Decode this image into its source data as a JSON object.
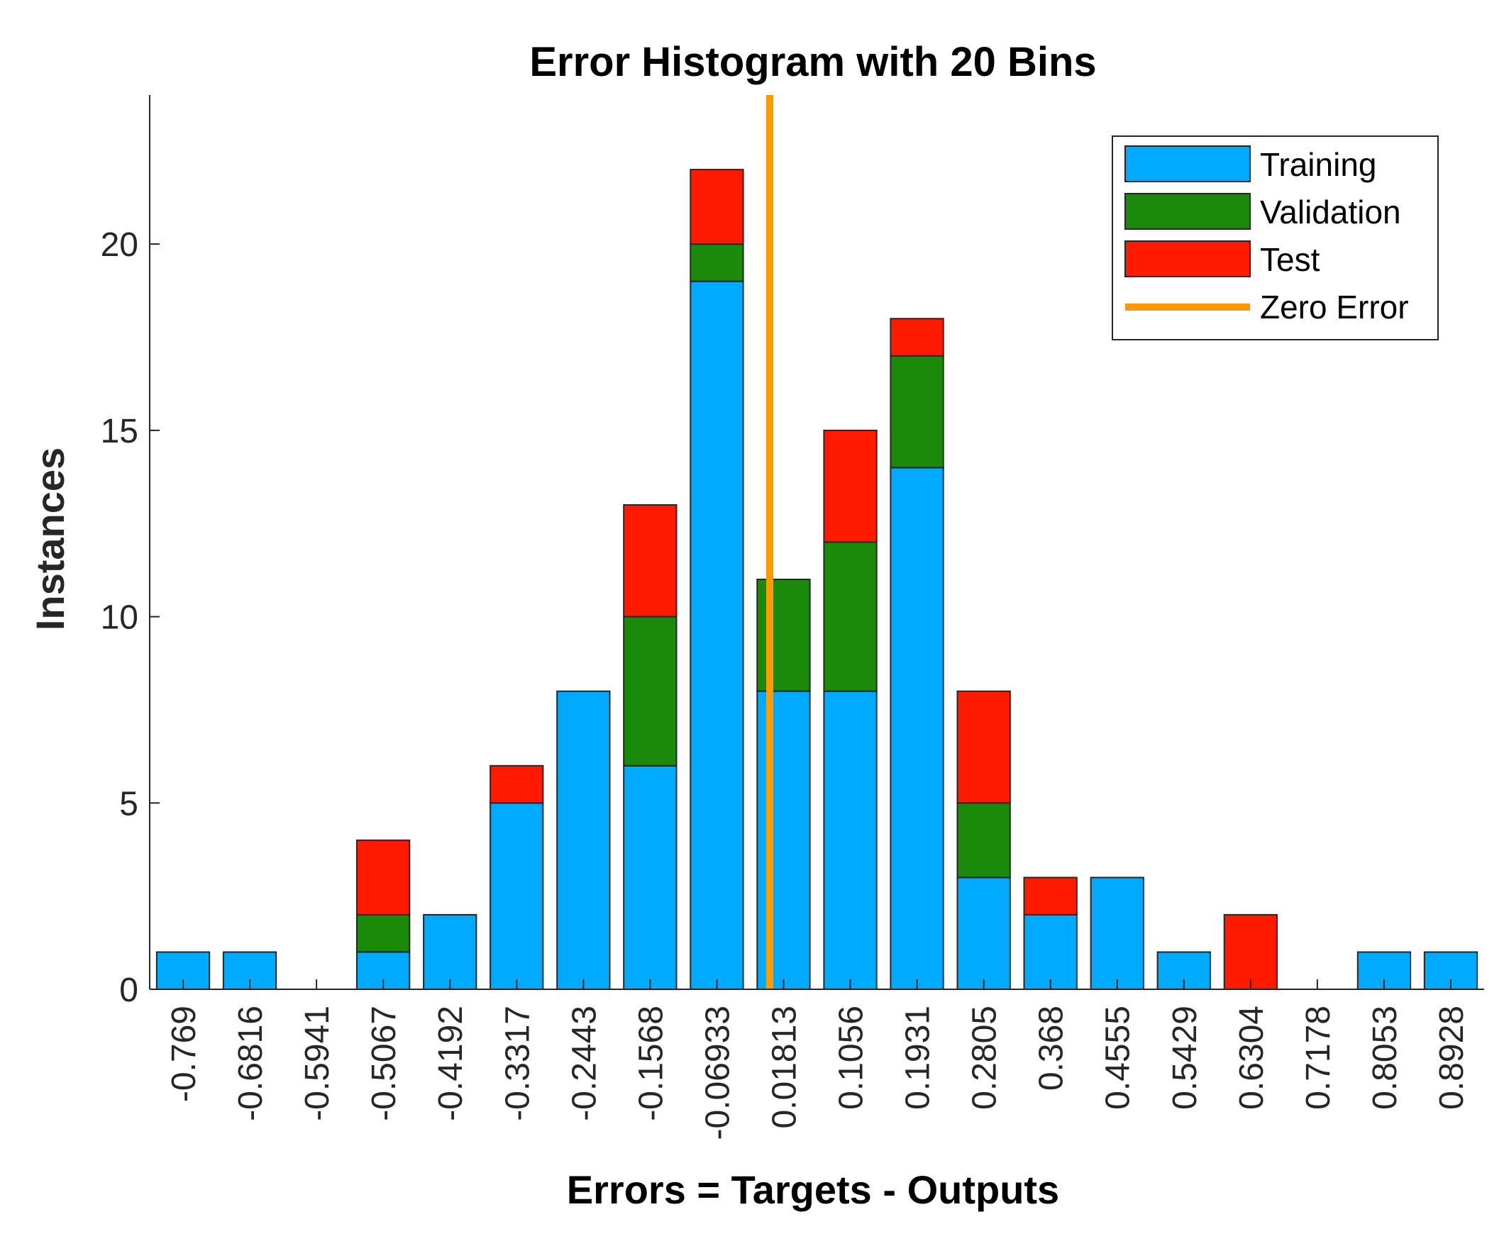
{
  "chart_data": {
    "type": "bar",
    "stacked": true,
    "title": "Error Histogram with 20 Bins",
    "xlabel": "Errors = Targets - Outputs",
    "ylabel": "Instances",
    "ylim": [
      0,
      24
    ],
    "yticks": [
      "0",
      "5",
      "10",
      "15",
      "20"
    ],
    "categories": [
      "-0.769",
      "-0.6816",
      "-0.5941",
      "-0.5067",
      "-0.4192",
      "-0.3317",
      "-0.2443",
      "-0.1568",
      "-0.06933",
      "0.01813",
      "0.1056",
      "0.1931",
      "0.2805",
      "0.368",
      "0.4555",
      "0.5429",
      "0.6304",
      "0.7178",
      "0.8053",
      "0.8928"
    ],
    "series": [
      {
        "name": "Training",
        "color": "#00aaff",
        "values": [
          1,
          1,
          0,
          1,
          2,
          5,
          8,
          6,
          19,
          8,
          8,
          14,
          3,
          2,
          3,
          1,
          0,
          0,
          1,
          1
        ]
      },
      {
        "name": "Validation",
        "color": "#1a8a0a",
        "values": [
          0,
          0,
          0,
          1,
          0,
          0,
          0,
          4,
          1,
          3,
          4,
          3,
          2,
          0,
          0,
          0,
          0,
          0,
          0,
          0
        ]
      },
      {
        "name": "Test",
        "color": "#ff1a00",
        "values": [
          0,
          0,
          0,
          2,
          0,
          1,
          0,
          3,
          2,
          0,
          3,
          1,
          3,
          1,
          0,
          0,
          2,
          0,
          0,
          0
        ]
      }
    ],
    "zero_error": {
      "name": "Zero Error",
      "color": "#ff9900",
      "x": 0
    },
    "legend": {
      "position": "top-right"
    },
    "grid": false
  }
}
